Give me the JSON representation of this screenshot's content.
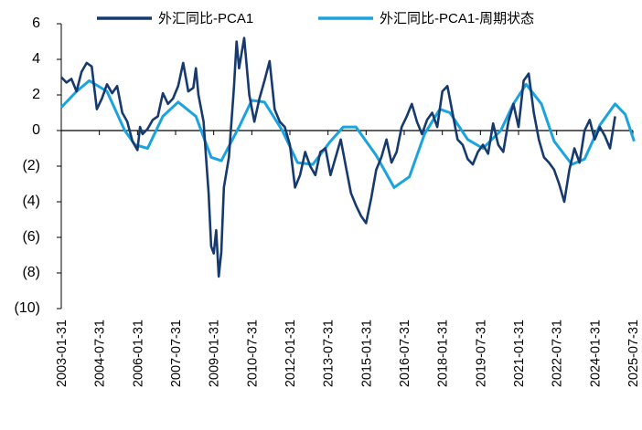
{
  "chart_data": {
    "type": "line",
    "title": "",
    "xlabel": "",
    "ylabel": "",
    "ylim": [
      -10,
      6
    ],
    "yticks": [
      6,
      4,
      2,
      0,
      -2,
      -4,
      -6,
      -8,
      -10
    ],
    "ytick_labels": [
      "6",
      "4",
      "2",
      "0",
      "(2)",
      "(4)",
      "(6)",
      "(8)",
      "(10)"
    ],
    "x_range": [
      2003.0,
      2025.5
    ],
    "xtick_values": [
      2003.0,
      2004.5,
      2006.0,
      2007.5,
      2009.0,
      2010.5,
      2012.0,
      2013.5,
      2015.0,
      2016.5,
      2018.0,
      2019.5,
      2021.0,
      2022.5,
      2024.0,
      2025.5
    ],
    "xtick_labels": [
      "2003-01-31",
      "2004-07-31",
      "2006-01-31",
      "2007-07-31",
      "2009-01-31",
      "2010-07-31",
      "2012-01-31",
      "2013-07-31",
      "2015-01-31",
      "2016-07-31",
      "2018-01-31",
      "2019-07-31",
      "2021-01-31",
      "2022-07-31",
      "2024-01-31",
      "2025-07-31"
    ],
    "legend_position": "top",
    "series": [
      {
        "name": "外汇同比-PCA1",
        "color": "#173a6e",
        "x": [
          2003.0,
          2003.2,
          2003.4,
          2003.6,
          2003.8,
          2004.0,
          2004.2,
          2004.4,
          2004.6,
          2004.8,
          2005.0,
          2005.2,
          2005.4,
          2005.6,
          2005.8,
          2006.0,
          2006.1,
          2006.2,
          2006.4,
          2006.6,
          2006.8,
          2007.0,
          2007.2,
          2007.4,
          2007.6,
          2007.8,
          2008.0,
          2008.2,
          2008.3,
          2008.4,
          2008.6,
          2008.7,
          2008.8,
          2008.9,
          2009.0,
          2009.1,
          2009.2,
          2009.3,
          2009.4,
          2009.6,
          2009.8,
          2009.9,
          2010.0,
          2010.2,
          2010.4,
          2010.6,
          2010.8,
          2011.0,
          2011.2,
          2011.4,
          2011.6,
          2011.8,
          2012.0,
          2012.2,
          2012.4,
          2012.6,
          2012.8,
          2013.0,
          2013.2,
          2013.4,
          2013.6,
          2013.8,
          2014.0,
          2014.2,
          2014.4,
          2014.6,
          2014.8,
          2015.0,
          2015.2,
          2015.4,
          2015.6,
          2015.8,
          2016.0,
          2016.2,
          2016.4,
          2016.6,
          2016.8,
          2017.0,
          2017.2,
          2017.4,
          2017.6,
          2017.8,
          2018.0,
          2018.2,
          2018.4,
          2018.6,
          2018.8,
          2019.0,
          2019.2,
          2019.4,
          2019.6,
          2019.8,
          2020.0,
          2020.2,
          2020.4,
          2020.6,
          2020.8,
          2021.0,
          2021.2,
          2021.4,
          2021.6,
          2021.8,
          2022.0,
          2022.2,
          2022.4,
          2022.6,
          2022.8,
          2023.0,
          2023.2,
          2023.4,
          2023.6,
          2023.8,
          2024.0,
          2024.2,
          2024.4,
          2024.6,
          2024.8
        ],
        "y": [
          3.0,
          2.7,
          2.9,
          2.2,
          3.3,
          3.8,
          3.6,
          1.2,
          1.8,
          2.6,
          2.1,
          2.5,
          1.0,
          0.5,
          -0.6,
          -1.1,
          0.2,
          -0.2,
          0.1,
          0.6,
          0.8,
          2.1,
          1.5,
          1.8,
          2.5,
          3.8,
          2.2,
          2.4,
          3.5,
          2.0,
          0.5,
          -1.5,
          -3.5,
          -6.5,
          -6.9,
          -5.6,
          -8.2,
          -6.8,
          -3.2,
          -1.5,
          2.5,
          5.0,
          3.5,
          5.2,
          2.0,
          0.5,
          1.8,
          2.8,
          3.9,
          1.2,
          0.5,
          0.2,
          -0.8,
          -3.2,
          -2.5,
          -1.2,
          -2.0,
          -2.5,
          -1.2,
          -1.0,
          -2.5,
          -1.5,
          -0.5,
          -2.0,
          -3.5,
          -4.2,
          -4.8,
          -5.2,
          -3.8,
          -2.2,
          -1.5,
          -0.5,
          -1.8,
          -1.2,
          0.2,
          0.8,
          1.5,
          0.5,
          -0.2,
          0.6,
          1.0,
          0.2,
          2.2,
          2.5,
          1.0,
          -0.5,
          -0.8,
          -1.6,
          -1.9,
          -1.2,
          -0.8,
          -1.3,
          0.4,
          -0.8,
          -1.2,
          0.5,
          1.5,
          0.2,
          2.8,
          3.2,
          1.0,
          -0.5,
          -1.5,
          -1.8,
          -2.2,
          -3.0,
          -4.0,
          -2.2,
          -1.0,
          -1.8,
          0.0,
          0.6,
          -0.5,
          0.2,
          -0.3,
          -1.0,
          0.8
        ]
      },
      {
        "name": "外汇同比-PCA1-周期状态",
        "color": "#1aa3de",
        "x": [
          2003.0,
          2003.6,
          2004.1,
          2004.8,
          2005.5,
          2005.9,
          2006.4,
          2007.0,
          2007.6,
          2008.3,
          2008.9,
          2009.3,
          2010.0,
          2010.5,
          2011.0,
          2011.7,
          2012.3,
          2012.9,
          2013.6,
          2014.1,
          2014.6,
          2015.4,
          2016.1,
          2016.7,
          2017.3,
          2017.9,
          2018.3,
          2019.0,
          2019.6,
          2020.3,
          2020.8,
          2021.3,
          2021.9,
          2022.4,
          2023.1,
          2023.6,
          2024.2,
          2024.8,
          2025.2,
          2025.55
        ],
        "y": [
          1.3,
          2.2,
          2.8,
          2.2,
          0.0,
          -0.8,
          -1.0,
          0.8,
          1.6,
          0.8,
          -1.5,
          -1.7,
          0.2,
          1.7,
          1.6,
          0.0,
          -1.8,
          -1.9,
          -0.6,
          0.2,
          0.2,
          -1.4,
          -3.2,
          -2.6,
          -0.2,
          1.2,
          1.0,
          -0.5,
          -1.0,
          0.0,
          1.5,
          2.6,
          1.5,
          -0.6,
          -1.9,
          -1.6,
          0.3,
          1.5,
          0.9,
          -0.6
        ]
      }
    ]
  }
}
